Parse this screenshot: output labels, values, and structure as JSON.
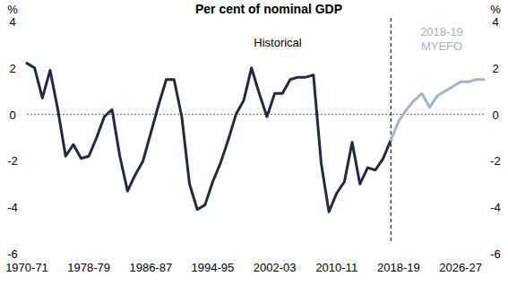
{
  "chart_data": {
    "type": "line",
    "title": "Per cent of nominal GDP",
    "y_label": "%",
    "y2_label": "%",
    "categories": [
      "1970-71",
      null,
      null,
      null,
      null,
      null,
      null,
      null,
      "1978-79",
      null,
      null,
      null,
      null,
      null,
      null,
      null,
      "1986-87",
      null,
      null,
      null,
      null,
      null,
      null,
      null,
      "1994-95",
      null,
      null,
      null,
      null,
      null,
      null,
      null,
      "2002-03",
      null,
      null,
      null,
      null,
      null,
      null,
      null,
      "2010-11",
      null,
      null,
      null,
      null,
      null,
      null,
      null,
      "2018-19",
      null,
      null,
      null,
      null,
      null,
      null,
      null,
      "2026-27",
      null,
      null,
      null
    ],
    "series": [
      {
        "name": "Historical",
        "color": "#1f2a44",
        "values": [
          2.2,
          2.0,
          0.7,
          1.9,
          0.2,
          -1.8,
          -1.3,
          -1.9,
          -1.8,
          -1.0,
          -0.1,
          0.2,
          -1.8,
          -3.3,
          -2.6,
          -2.0,
          -0.8,
          0.4,
          1.5,
          1.5,
          -0.1,
          -3.0,
          -4.1,
          -3.9,
          -2.9,
          -2.1,
          -1.1,
          0.0,
          0.6,
          2.0,
          0.9,
          -0.1,
          0.9,
          0.9,
          1.5,
          1.6,
          1.6,
          1.7,
          -2.1,
          -4.2,
          -3.4,
          -2.9,
          -1.2,
          -3.0,
          -2.3,
          -2.4,
          -1.9,
          -1.1,
          null,
          null,
          null,
          null,
          null,
          null,
          null,
          null,
          null,
          null,
          null,
          null
        ]
      },
      {
        "name": "2018-19 MYEFO",
        "color": "#a5b3d3",
        "values": [
          null,
          null,
          null,
          null,
          null,
          null,
          null,
          null,
          null,
          null,
          null,
          null,
          null,
          null,
          null,
          null,
          null,
          null,
          null,
          null,
          null,
          null,
          null,
          null,
          null,
          null,
          null,
          null,
          null,
          null,
          null,
          null,
          null,
          null,
          null,
          null,
          null,
          null,
          null,
          null,
          null,
          null,
          null,
          null,
          null,
          null,
          null,
          -1.1,
          -0.3,
          0.2,
          0.6,
          0.9,
          0.3,
          0.8,
          1.0,
          1.2,
          1.4,
          1.4,
          1.5,
          1.5
        ]
      }
    ],
    "ylim": [
      -6,
      4
    ],
    "yticks": [
      -6,
      -4,
      -2,
      0,
      2,
      4
    ],
    "y2lim": [
      -6,
      4
    ],
    "y2ticks": [
      -6,
      -4,
      -2,
      0,
      2,
      4
    ],
    "grid": false
  }
}
